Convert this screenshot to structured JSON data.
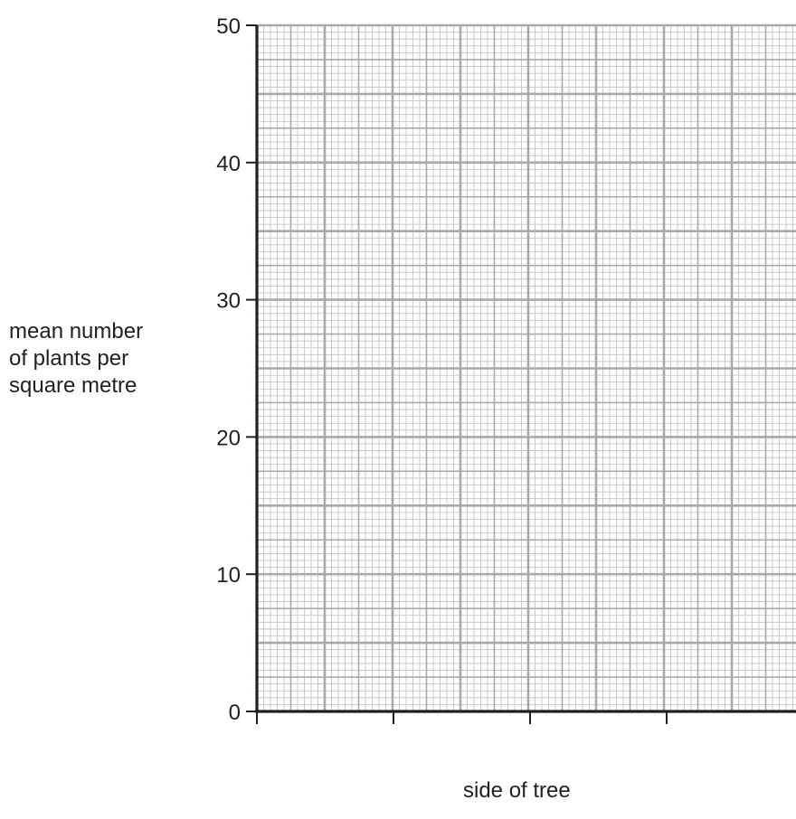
{
  "chart_data": {
    "type": "bar",
    "title": "",
    "xlabel": "side of tree",
    "ylabel_lines": [
      "mean number",
      "of plants per",
      "square metre"
    ],
    "ylim": [
      0,
      50
    ],
    "yticks": [
      "0",
      "10",
      "20",
      "30",
      "40",
      "50"
    ],
    "categories": [],
    "values": [],
    "grid": "on",
    "colors": {
      "axis": "#231f20",
      "grid_minor": "#bcbec0",
      "grid_major": "#a7a9ac"
    }
  }
}
